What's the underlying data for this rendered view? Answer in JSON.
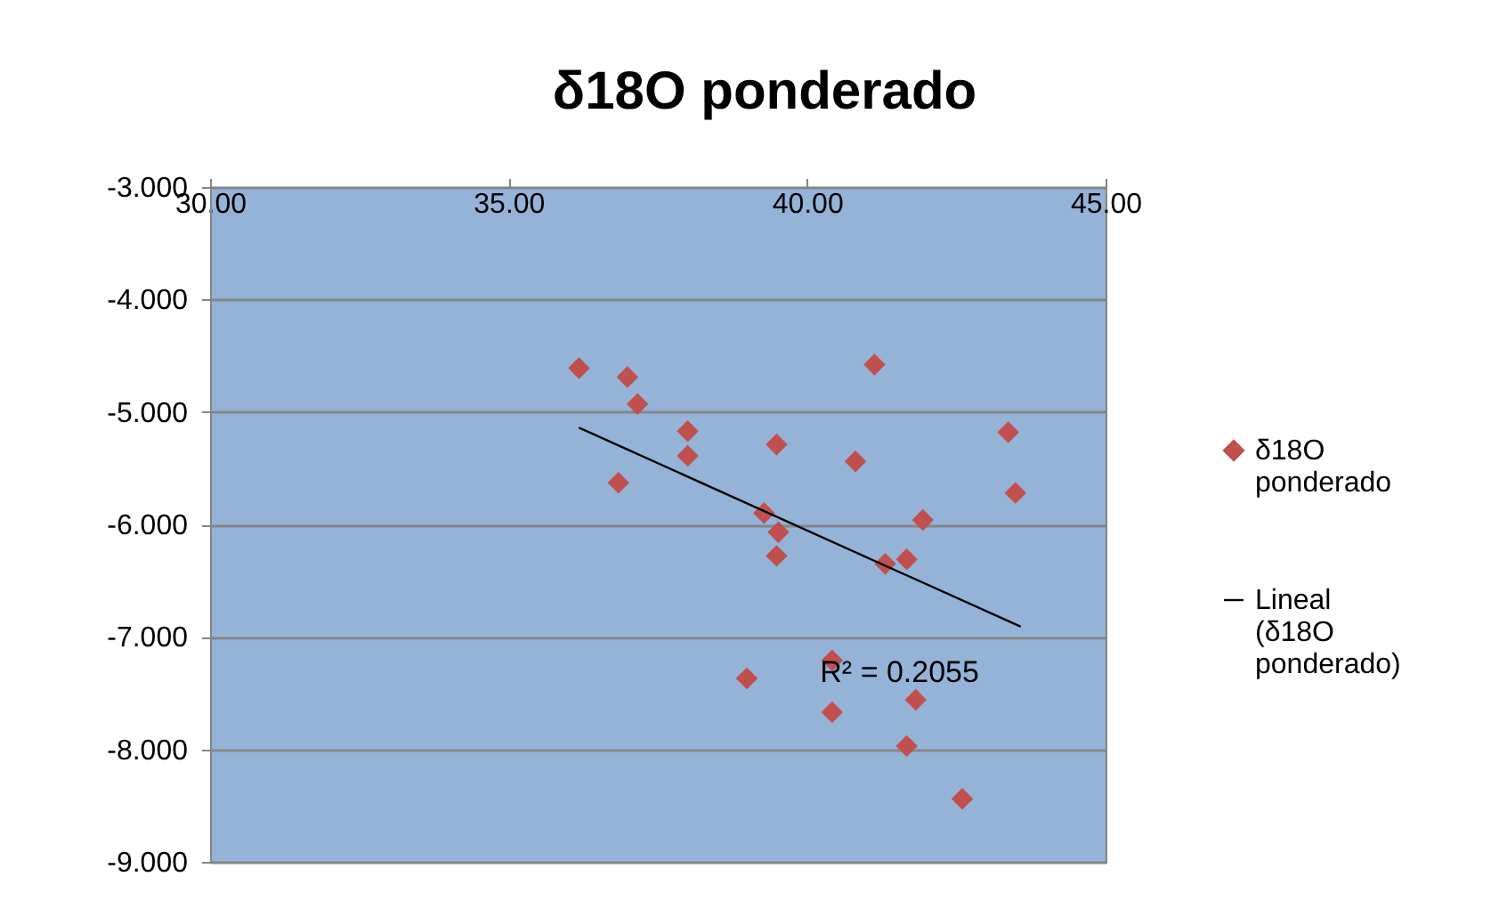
{
  "chart_data": {
    "type": "scatter",
    "title": "δ18O ponderado",
    "xlim": [
      30,
      45
    ],
    "xticks": [
      {
        "value": 30,
        "label": "30.00"
      },
      {
        "value": 35,
        "label": "35.00"
      },
      {
        "value": 40,
        "label": "40.00"
      },
      {
        "value": 45,
        "label": "45.00"
      }
    ],
    "ylim": [
      -9,
      -3
    ],
    "yticks": [
      {
        "value": -3,
        "label": "-3.000"
      },
      {
        "value": -4,
        "label": "-4.000"
      },
      {
        "value": -5,
        "label": "-5.000"
      },
      {
        "value": -6,
        "label": "-6.000"
      },
      {
        "value": -7,
        "label": "-7.000"
      },
      {
        "value": -8,
        "label": "-8.000"
      },
      {
        "value": -9,
        "label": "-9.000"
      }
    ],
    "grid": "y",
    "legend": "right",
    "annotations": [
      "R² = 0.2055"
    ],
    "series": [
      {
        "name": "δ18O ponderado",
        "color": "#c0504d",
        "marker": "diamond",
        "x": [
          36.18,
          36.99,
          37.16,
          36.84,
          38.0,
          38.0,
          39.49,
          39.28,
          39.52,
          39.49,
          41.13,
          40.81,
          43.37,
          43.49,
          41.94,
          41.31,
          41.67,
          38.99,
          40.42,
          40.42,
          41.82,
          41.67,
          42.6
        ],
        "values": [
          -4.61,
          -4.69,
          -4.93,
          -5.63,
          -5.17,
          -5.39,
          -5.29,
          -5.9,
          -6.07,
          -6.28,
          -4.58,
          -5.44,
          -5.18,
          -5.72,
          -5.96,
          -6.35,
          -6.31,
          -7.37,
          -7.21,
          -7.67,
          -7.56,
          -7.97,
          -8.44
        ]
      },
      {
        "type": "line",
        "name": "Lineal (δ18O ponderado)",
        "color": "#000000",
        "marker": "none",
        "x": [
          36.18,
          43.58
        ],
        "values": [
          -5.14,
          -6.91
        ]
      }
    ]
  }
}
